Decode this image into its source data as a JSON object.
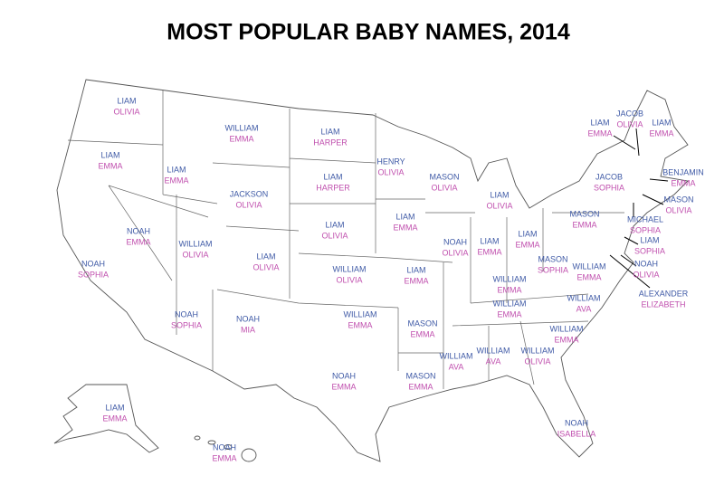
{
  "title": "MOST POPULAR BABY NAMES, 2014",
  "states": [
    {
      "boy": "LIAM",
      "girl": "OLIVIA"
    },
    {
      "boy": "LIAM",
      "girl": "EMMA"
    },
    {
      "boy": "NOAH",
      "girl": "SOPHIA"
    },
    {
      "boy": "NOAH",
      "girl": "EMMA"
    },
    {
      "boy": "LIAM",
      "girl": "EMMA"
    },
    {
      "boy": "WILLIAM",
      "girl": "EMMA"
    },
    {
      "boy": "JACKSON",
      "girl": "OLIVIA"
    },
    {
      "boy": "WILLIAM",
      "girl": "OLIVIA"
    },
    {
      "boy": "NOAH",
      "girl": "SOPHIA"
    },
    {
      "boy": "LIAM",
      "girl": "OLIVIA"
    },
    {
      "boy": "NOAH",
      "girl": "MIA"
    },
    {
      "boy": "LIAM",
      "girl": "HARPER"
    },
    {
      "boy": "LIAM",
      "girl": "HARPER"
    },
    {
      "boy": "LIAM",
      "girl": "OLIVIA"
    },
    {
      "boy": "WILLIAM",
      "girl": "OLIVIA"
    },
    {
      "boy": "WILLIAM",
      "girl": "EMMA"
    },
    {
      "boy": "NOAH",
      "girl": "EMMA"
    },
    {
      "boy": "HENRY",
      "girl": "OLIVIA"
    },
    {
      "boy": "LIAM",
      "girl": "EMMA"
    },
    {
      "boy": "LIAM",
      "girl": "EMMA"
    },
    {
      "boy": "MASON",
      "girl": "EMMA"
    },
    {
      "boy": "MASON",
      "girl": "EMMA"
    },
    {
      "boy": "MASON",
      "girl": "OLIVIA"
    },
    {
      "boy": "NOAH",
      "girl": "OLIVIA"
    },
    {
      "boy": "LIAM",
      "girl": "OLIVIA"
    },
    {
      "boy": "LIAM",
      "girl": "EMMA"
    },
    {
      "boy": "LIAM",
      "girl": "EMMA"
    },
    {
      "boy": "WILLIAM",
      "girl": "EMMA"
    },
    {
      "boy": "WILLIAM",
      "girl": "EMMA"
    },
    {
      "boy": "WILLIAM",
      "girl": "AVA"
    },
    {
      "boy": "WILLIAM",
      "girl": "AVA"
    },
    {
      "boy": "WILLIAM",
      "girl": "OLIVIA"
    },
    {
      "boy": "NOAH",
      "girl": "ISABELLA"
    },
    {
      "boy": "WILLIAM",
      "girl": "EMMA"
    },
    {
      "boy": "WILLIAM",
      "girl": "AVA"
    },
    {
      "boy": "WILLIAM",
      "girl": "EMMA"
    },
    {
      "boy": "MASON",
      "girl": "SOPHIA"
    },
    {
      "boy": "MASON",
      "girl": "EMMA"
    },
    {
      "boy": "JACOB",
      "girl": "SOPHIA"
    },
    {
      "boy": "LIAM",
      "girl": "EMMA"
    },
    {
      "boy": "JACOB",
      "girl": "OLIVIA"
    },
    {
      "boy": "LIAM",
      "girl": "EMMA"
    },
    {
      "boy": "BENJAMIN",
      "girl": "EMMA"
    },
    {
      "boy": "MASON",
      "girl": "OLIVIA"
    },
    {
      "boy": "MICHAEL",
      "girl": "SOPHIA"
    },
    {
      "boy": "LIAM",
      "girl": "SOPHIA"
    },
    {
      "boy": "NOAH",
      "girl": "OLIVIA"
    },
    {
      "boy": "ALEXANDER",
      "girl": "ELIZABETH"
    },
    {
      "boy": "LIAM",
      "girl": "EMMA"
    },
    {
      "boy": "NOAH",
      "girl": "EMMA"
    }
  ]
}
